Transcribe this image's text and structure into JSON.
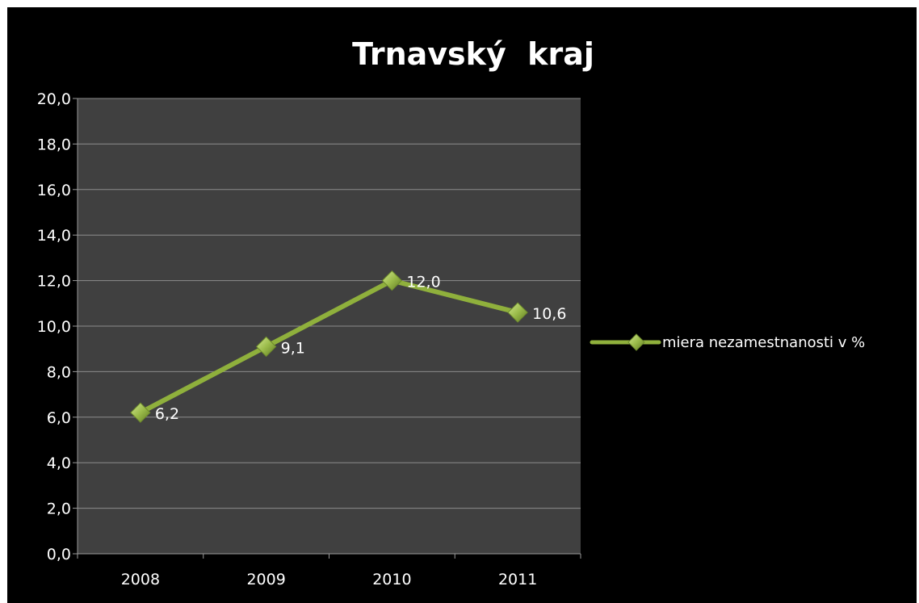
{
  "chart_data": {
    "type": "line",
    "title": "Trnavský  kraj",
    "categories": [
      "2008",
      "2009",
      "2010",
      "2011"
    ],
    "series": [
      {
        "name": "miera nezamestnanosti v %",
        "values": [
          6.2,
          9.1,
          12.0,
          10.6
        ],
        "data_labels": [
          "6,2",
          "9,1",
          "12,0",
          "10,6"
        ],
        "color": "#8fb03c",
        "marker": "diamond"
      }
    ],
    "ylim": [
      0,
      20
    ],
    "yticks": [
      0,
      2,
      4,
      6,
      8,
      10,
      12,
      14,
      16,
      18,
      20
    ],
    "ytick_labels": [
      "0,0",
      "2,0",
      "4,0",
      "6,0",
      "8,0",
      "10,0",
      "12,0",
      "14,0",
      "16,0",
      "18,0",
      "20,0"
    ],
    "grid": true,
    "legend_position": "right",
    "colors": {
      "background": "#000000",
      "plot_area": "#404040",
      "gridline": "#8c8c8c",
      "text": "#ffffff"
    }
  }
}
